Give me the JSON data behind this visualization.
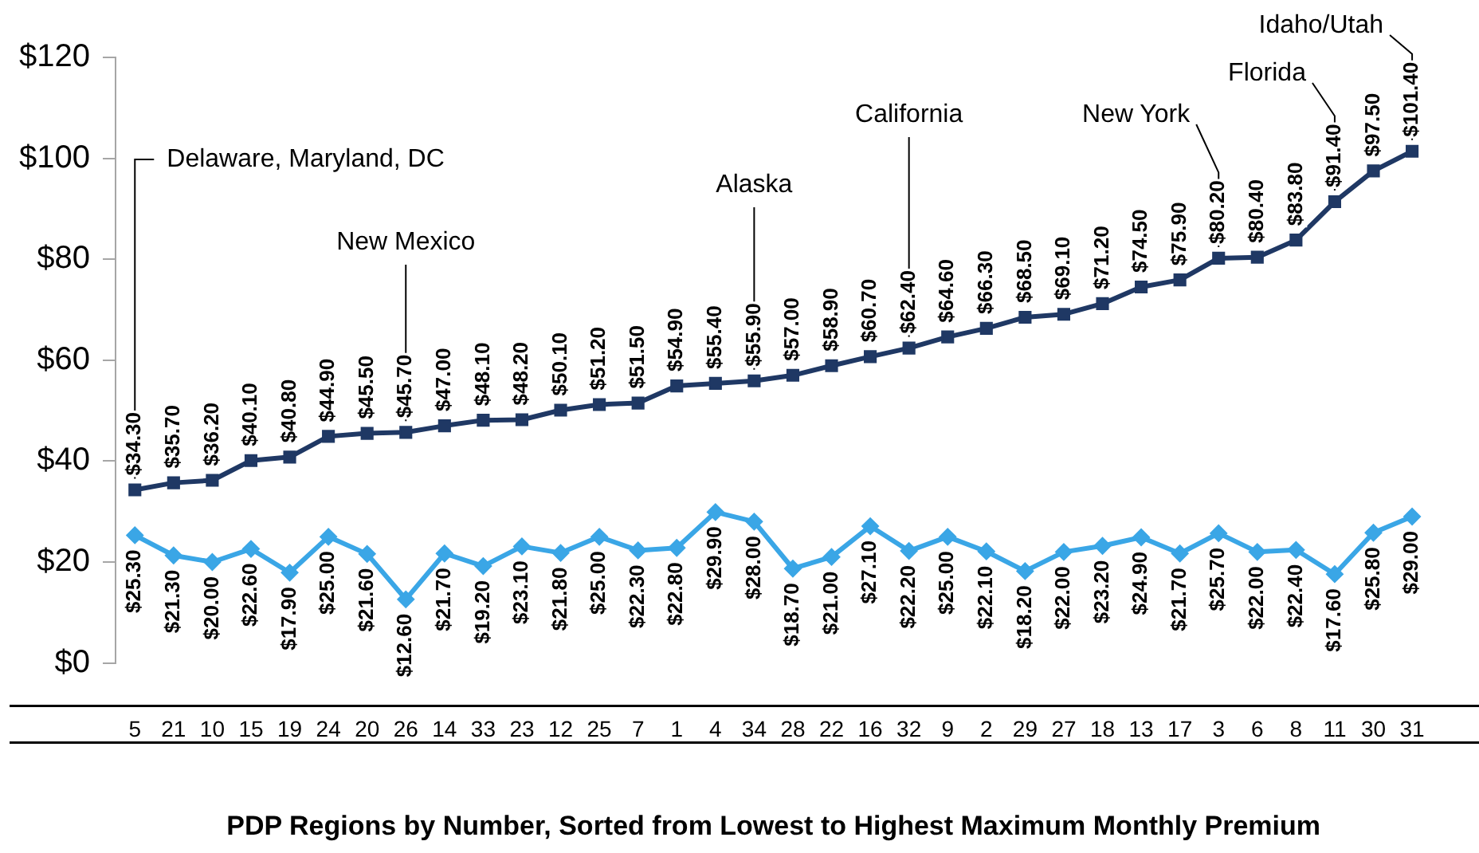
{
  "chart_data": {
    "type": "line",
    "xlabel": "PDP Regions by Number, Sorted from Lowest to Highest Maximum Monthly Premium",
    "categories": [
      "5",
      "21",
      "10",
      "15",
      "19",
      "24",
      "20",
      "26",
      "14",
      "33",
      "23",
      "12",
      "25",
      "7",
      "1",
      "4",
      "34",
      "28",
      "22",
      "16",
      "32",
      "9",
      "2",
      "29",
      "27",
      "18",
      "13",
      "17",
      "3",
      "6",
      "8",
      "11",
      "30",
      "31"
    ],
    "series": [
      {
        "color": "#1f3864",
        "marker": "square",
        "values": [
          34.3,
          35.7,
          36.2,
          40.1,
          40.8,
          44.9,
          45.5,
          45.7,
          47.0,
          48.1,
          48.2,
          50.1,
          51.2,
          51.5,
          54.9,
          55.4,
          55.9,
          57.0,
          58.9,
          60.7,
          62.4,
          64.6,
          66.3,
          68.5,
          69.1,
          71.2,
          74.5,
          75.9,
          80.2,
          80.4,
          83.8,
          91.4,
          97.5,
          101.4
        ],
        "value_labels": [
          "$34.30",
          "$35.70",
          "$36.20",
          "$40.10",
          "$40.80",
          "$44.90",
          "$45.50",
          "$45.70",
          "$47.00",
          "$48.10",
          "$48.20",
          "$50.10",
          "$51.20",
          "$51.50",
          "$54.90",
          "$55.40",
          "$55.90",
          "$57.00",
          "$58.90",
          "$60.70",
          "$62.40",
          "$64.60",
          "$66.30",
          "$68.50",
          "$69.10",
          "$71.20",
          "$74.50",
          "$75.90",
          "$80.20",
          "$80.40",
          "$83.80",
          "$91.40",
          "$97.50",
          "$101.40"
        ]
      },
      {
        "color": "#3aa6e6",
        "marker": "diamond",
        "values": [
          25.3,
          21.3,
          20.0,
          22.6,
          17.9,
          25.0,
          21.6,
          12.6,
          21.7,
          19.2,
          23.1,
          21.8,
          25.0,
          22.3,
          22.8,
          29.9,
          28.0,
          18.7,
          21.0,
          27.1,
          22.2,
          25.0,
          22.1,
          18.2,
          22.0,
          23.2,
          24.9,
          21.7,
          25.7,
          22.0,
          22.4,
          17.6,
          25.8,
          29.0
        ],
        "value_labels": [
          "$25.30",
          "$21.30",
          "$20.00",
          "$22.60",
          "$17.90",
          "$25.00",
          "$21.60",
          "$12.60",
          "$21.70",
          "$19.20",
          "$23.10",
          "$21.80",
          "$25.00",
          "$22.30",
          "$22.80",
          "$29.90",
          "$28.00",
          "$18.70",
          "$21.00",
          "$27.10",
          "$22.20",
          "$25.00",
          "$22.10",
          "$18.20",
          "$22.00",
          "$23.20",
          "$24.90",
          "$21.70",
          "$25.70",
          "$22.00",
          "$22.40",
          "$17.60",
          "$25.80",
          "$29.00"
        ]
      }
    ],
    "ylim": [
      0,
      120
    ],
    "yticks": [
      {
        "value": 0,
        "label": "$0"
      },
      {
        "value": 20,
        "label": "$20"
      },
      {
        "value": 40,
        "label": "$40"
      },
      {
        "value": 60,
        "label": "$60"
      },
      {
        "value": 80,
        "label": "$80"
      },
      {
        "value": 100,
        "label": "$100"
      },
      {
        "value": 120,
        "label": "$120"
      }
    ],
    "grid": false,
    "legend": false,
    "annotations": [
      {
        "text": "Delaware, Maryland, DC",
        "x": "5",
        "y": 34.3
      },
      {
        "text": "New Mexico",
        "x": "26",
        "y": 45.7
      },
      {
        "text": "Alaska",
        "x": "34",
        "y": 55.9
      },
      {
        "text": "California",
        "x": "32",
        "y": 62.4
      },
      {
        "text": "New York",
        "x": "3",
        "y": 80.2
      },
      {
        "text": "Florida",
        "x": "11",
        "y": 91.4
      },
      {
        "text": "Idaho/Utah",
        "x": "31",
        "y": 101.4
      }
    ]
  }
}
